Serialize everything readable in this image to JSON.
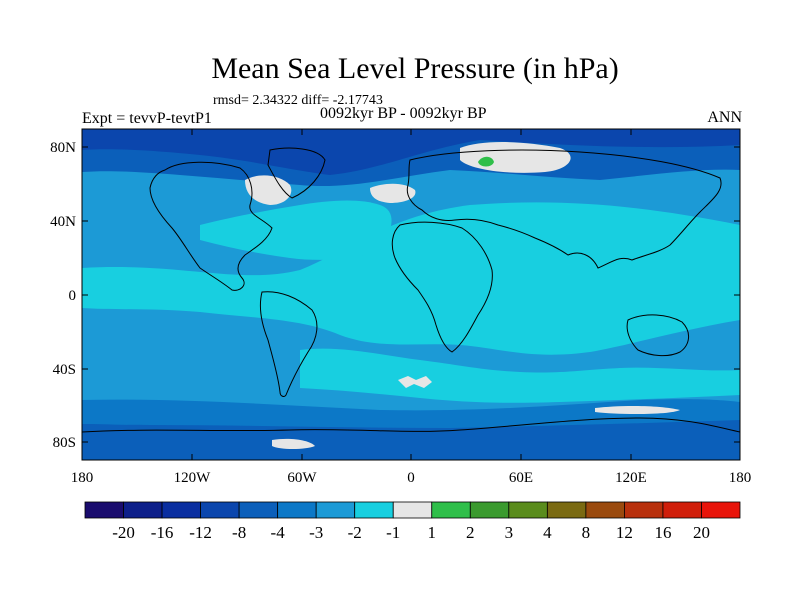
{
  "title": "Mean Sea Level Pressure (in hPa)",
  "stats": "rmsd= 2.34322 diff= -2.17743",
  "period": "0092kyr BP - 0092kyr BP",
  "experiment": "Expt = tevvP-tevtP1",
  "season": "ANN",
  "lat_ticks": [
    "80N",
    "40N",
    "0",
    "40S",
    "80S"
  ],
  "lon_ticks": [
    "180",
    "120W",
    "60W",
    "0",
    "60E",
    "120E",
    "180"
  ],
  "colorbar": {
    "labels": [
      "-20",
      "-16",
      "-12",
      "-8",
      "-4",
      "-3",
      "-2",
      "-1",
      "1",
      "2",
      "3",
      "4",
      "8",
      "12",
      "16",
      "20"
    ],
    "colors": [
      "#1a0c6e",
      "#0d1f8a",
      "#0a2ea0",
      "#0b46ad",
      "#0b5fba",
      "#0c78c7",
      "#1c9ad6",
      "#18cfe0",
      "#e6e6e6",
      "#2fbf4a",
      "#3a9a2e",
      "#5a8c1c",
      "#7a6a12",
      "#9a4a0e",
      "#b8300c",
      "#d01e0a",
      "#e8140a"
    ]
  },
  "map_colors": {
    "level_minus_1": "#18cfe0",
    "level_minus_2": "#1c9ad6",
    "level_minus_3": "#0c78c7",
    "level_minus_4": "#0b5fba",
    "level_minus_8": "#0b46ad",
    "level_zero": "#e6e6e6",
    "level_plus_1": "#2fbf4a"
  }
}
